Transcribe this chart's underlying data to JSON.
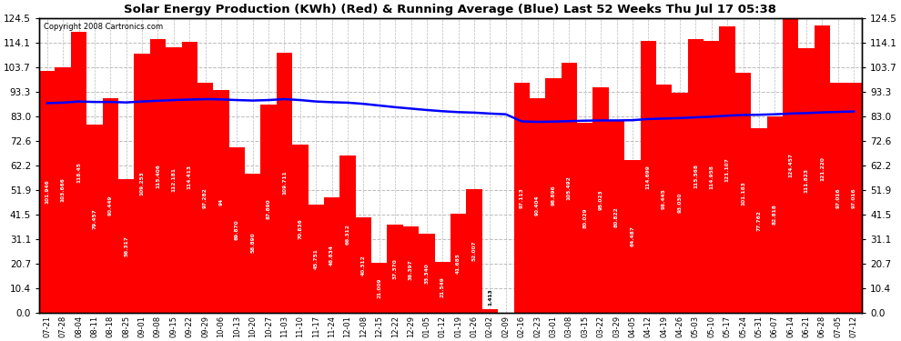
{
  "title": "Solar Energy Production (KWh) (Red) & Running Average (Blue) Last 52 Weeks Thu Jul 17 05:38",
  "copyright": "Copyright 2008 Cartronics.com",
  "bar_color": "#FF0000",
  "avg_line_color": "#0000FF",
  "background_color": "#FFFFFF",
  "grid_color": "#BBBBBB",
  "ylim": [
    0.0,
    124.5
  ],
  "yticks": [
    0.0,
    10.4,
    20.7,
    31.1,
    41.5,
    51.9,
    62.2,
    72.6,
    83.0,
    93.3,
    103.7,
    114.1,
    124.5
  ],
  "categories": [
    "07-21",
    "07-28",
    "08-04",
    "08-11",
    "08-18",
    "08-25",
    "09-01",
    "09-08",
    "09-15",
    "09-22",
    "09-29",
    "10-06",
    "10-13",
    "10-20",
    "10-27",
    "11-03",
    "11-10",
    "11-17",
    "11-24",
    "12-01",
    "12-08",
    "12-15",
    "12-22",
    "12-29",
    "01-05",
    "01-12",
    "01-19",
    "01-26",
    "02-02",
    "02-09",
    "02-16",
    "02-23",
    "03-01",
    "03-08",
    "03-15",
    "03-22",
    "03-29",
    "04-05",
    "04-12",
    "04-19",
    "04-26",
    "05-03",
    "05-10",
    "05-17",
    "05-24",
    "05-31",
    "06-07",
    "06-14",
    "06-21",
    "06-28",
    "07-05",
    "07-12"
  ],
  "values": [
    101.946,
    103.666,
    118.45,
    79.457,
    90.449,
    56.317,
    109.253,
    115.406,
    112.181,
    114.413,
    97.282,
    94.0,
    69.87,
    58.89,
    87.89,
    109.711,
    70.836,
    45.751,
    48.834,
    66.312,
    40.312,
    21.009,
    37.37,
    36.397,
    33.34,
    21.549,
    41.685,
    52.007,
    1.413,
    0.0,
    97.113,
    90.404,
    98.896,
    105.492,
    80.029,
    95.023,
    80.822,
    64.487,
    114.699,
    96.445,
    93.03,
    115.568,
    114.958,
    121.107,
    101.183,
    77.762,
    82.818,
    124.457,
    111.823,
    121.22,
    97.016,
    97.016
  ],
  "running_avg": [
    88.5,
    88.7,
    89.2,
    89.0,
    89.0,
    88.8,
    89.2,
    89.5,
    89.8,
    90.0,
    90.2,
    90.1,
    89.8,
    89.6,
    89.8,
    90.2,
    89.8,
    89.2,
    88.9,
    88.7,
    88.2,
    87.5,
    86.8,
    86.2,
    85.6,
    85.1,
    84.7,
    84.5,
    84.1,
    83.8,
    80.8,
    80.6,
    80.7,
    80.9,
    81.1,
    81.2,
    81.2,
    81.3,
    81.8,
    82.0,
    82.2,
    82.5,
    82.8,
    83.2,
    83.5,
    83.6,
    83.8,
    84.1,
    84.3,
    84.6,
    84.8,
    85.0
  ],
  "label_values": [
    "101.946",
    "103.666",
    "118.45",
    "79.457",
    "90.449",
    "56.317",
    "109.253",
    "115.406",
    "112.181",
    "114.413",
    "97.282",
    "94",
    "69.870",
    "58.890",
    "87.890",
    "109.711",
    "70.836",
    "45.751",
    "48.834",
    "66.312",
    "40.312",
    "21.009",
    "37.370",
    "36.397",
    "33.340",
    "21.549",
    "41.685",
    "52.007",
    "1.413",
    "0.0",
    "97.113",
    "90.404",
    "98.896",
    "105.492",
    "80.029",
    "95.023",
    "80.822",
    "64.487",
    "114.699",
    "96.445",
    "93.030",
    "115.568",
    "114.958",
    "121.107",
    "101.183",
    "77.762",
    "82.818",
    "124.457",
    "111.823",
    "121.220",
    "97.016",
    "97.016"
  ]
}
